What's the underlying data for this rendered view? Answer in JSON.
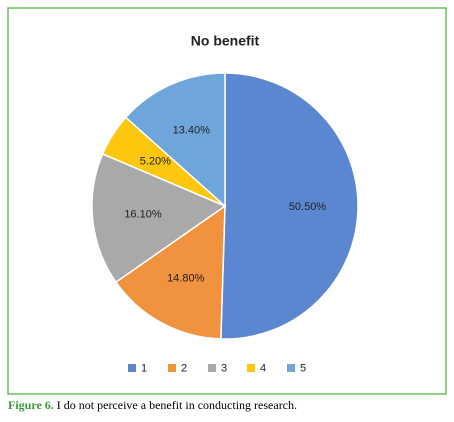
{
  "chart_data": {
    "type": "pie",
    "title": "No benefit",
    "categories": [
      "1",
      "2",
      "3",
      "4",
      "5"
    ],
    "values": [
      50.5,
      14.8,
      16.1,
      5.2,
      13.4
    ],
    "value_labels": [
      "50.50%",
      "14.80%",
      "16.10%",
      "5.20%",
      "13.40%"
    ],
    "colors": [
      "#5b87d0",
      "#f0923e",
      "#a9a9a9",
      "#fdc710",
      "#6ea6db"
    ]
  },
  "caption": {
    "label": "Figure 6.",
    "text": "I do not perceive a benefit in conducting research."
  }
}
